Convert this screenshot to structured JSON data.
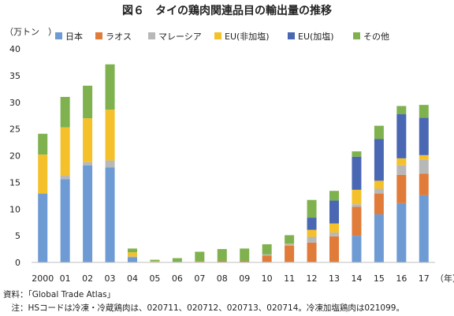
{
  "chart_data": {
    "type": "bar",
    "stacked": true,
    "title": "図６　タイの鶏肉関連品目の輸出量の推移",
    "ylabel": "（万トン　）",
    "xlabel": "（年）",
    "ylim": [
      0,
      40
    ],
    "yticks": [
      0,
      5,
      10,
      15,
      20,
      25,
      30,
      35,
      40
    ],
    "grid": false,
    "legend_position": "top",
    "categories": [
      "2000",
      "01",
      "02",
      "03",
      "04",
      "05",
      "06",
      "07",
      "08",
      "09",
      "10",
      "11",
      "12",
      "13",
      "14",
      "15",
      "16",
      "17"
    ],
    "series": [
      {
        "name": "日本",
        "color": "#6f9bd4",
        "values": [
          12.9,
          15.6,
          18.2,
          17.8,
          1.0,
          0.1,
          0.1,
          0.1,
          0.1,
          0.1,
          0.1,
          0.1,
          0.1,
          0.1,
          5.0,
          9.0,
          11.1,
          12.6
        ]
      },
      {
        "name": "ラオス",
        "color": "#e07b39",
        "values": [
          0.0,
          0.0,
          0.0,
          0.0,
          0.0,
          0.0,
          0.0,
          0.1,
          0.2,
          0.2,
          1.2,
          3.0,
          3.6,
          4.8,
          5.4,
          3.9,
          5.3,
          4.0
        ]
      },
      {
        "name": "マレーシア",
        "color": "#b8b8b8",
        "values": [
          0.0,
          0.7,
          0.6,
          1.3,
          0.1,
          0.0,
          0.0,
          0.0,
          0.0,
          0.0,
          0.2,
          0.3,
          1.1,
          0.7,
          0.5,
          0.9,
          1.8,
          2.6
        ]
      },
      {
        "name": "EU(非加塩)",
        "color": "#f4c12a",
        "values": [
          7.3,
          9.0,
          8.2,
          9.5,
          0.8,
          0.1,
          0.0,
          0.0,
          0.0,
          0.0,
          0.0,
          0.1,
          1.3,
          1.7,
          2.7,
          1.5,
          1.3,
          0.9
        ]
      },
      {
        "name": "EU(加塩)",
        "color": "#4a67b3",
        "values": [
          0.0,
          0.0,
          0.0,
          0.0,
          0.0,
          0.0,
          0.0,
          0.0,
          0.0,
          0.0,
          0.0,
          0.0,
          2.3,
          4.3,
          6.2,
          7.8,
          8.3,
          7.0
        ]
      },
      {
        "name": "その他",
        "color": "#7fb24f",
        "values": [
          3.9,
          5.7,
          6.1,
          8.5,
          0.7,
          0.3,
          0.7,
          1.8,
          2.2,
          2.3,
          1.9,
          1.6,
          3.3,
          1.8,
          1.0,
          2.5,
          1.5,
          2.4
        ]
      }
    ]
  },
  "notes": {
    "source": "資料：「Global Trade Atlas」",
    "note": "　注：HSコードは冷凍・冷蔵鶏肉は、020711、020712、020713、020714。冷凍加塩鶏肉は021099。"
  }
}
